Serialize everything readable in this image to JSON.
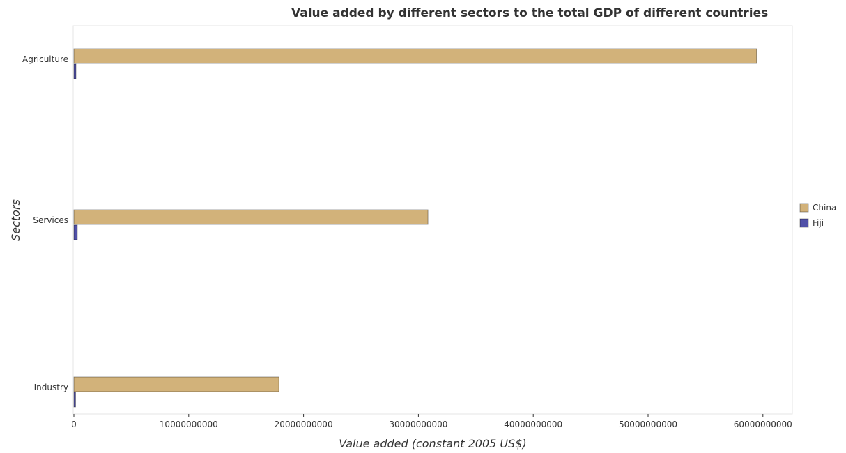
{
  "chart_data": {
    "type": "bar",
    "orientation": "horizontal",
    "title": "Value added by different sectors to the total GDP of different countries",
    "xlabel": "Value added (constant 2005 US$)",
    "ylabel": "Sectors",
    "categories": [
      "Industry",
      "Services",
      "Agriculture"
    ],
    "series": [
      {
        "name": "China",
        "color": "#d2b27a",
        "values": [
          17850000000,
          30830000000,
          59450000000
        ]
      },
      {
        "name": "Fiji",
        "color": "#5050a8",
        "values": [
          145000000,
          300000000,
          180000000
        ]
      }
    ],
    "xlim": [
      0,
      62500000000
    ],
    "xticks": [
      0,
      10000000000,
      20000000000,
      30000000000,
      40000000000,
      50000000000,
      60000000000
    ],
    "xtick_labels": [
      "0",
      "10000000000",
      "20000000000",
      "30000000000",
      "40000000000",
      "50000000000",
      "60000000000"
    ],
    "grid": false,
    "legend_position": "right"
  }
}
